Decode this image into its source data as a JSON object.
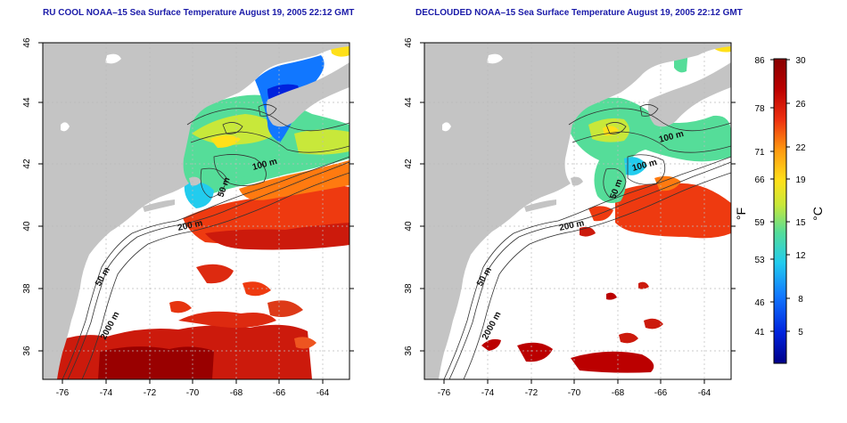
{
  "left_panel": {
    "title": "RU COOL NOAA–15 Sea Surface Temperature August 19, 2005 22:12 GMT",
    "x_ticks": [
      "-76",
      "-74",
      "-72",
      "-70",
      "-68",
      "-66",
      "-64"
    ],
    "y_ticks": [
      "36",
      "38",
      "40",
      "42",
      "44",
      "46"
    ],
    "contour_labels": [
      "100 m",
      "50 m",
      "200 m",
      "50 m",
      "2000 m"
    ]
  },
  "right_panel": {
    "title": "DECLOUDED NOAA–15 Sea Surface Temperature August 19, 2005 22:12 GMT",
    "x_ticks": [
      "-76",
      "-74",
      "-72",
      "-70",
      "-68",
      "-66",
      "-64"
    ],
    "y_ticks": [
      "36",
      "38",
      "40",
      "42",
      "44",
      "46"
    ],
    "contour_labels": [
      "100 m",
      "100 m",
      "50 m",
      "200 m",
      "50 m",
      "2000 m"
    ]
  },
  "colorbar": {
    "fahrenheit_label": "°F",
    "celsius_label": "°C",
    "fahrenheit_ticks": [
      "86",
      "78",
      "71",
      "66",
      "59",
      "53",
      "46",
      "41"
    ],
    "celsius_ticks": [
      "30",
      "26",
      "22",
      "19",
      "15",
      "12",
      "8",
      "5"
    ],
    "celsius_range": [
      2,
      30
    ],
    "colors": [
      "#000088",
      "#0022dd",
      "#1177ff",
      "#22ccee",
      "#55dd99",
      "#c8e83a",
      "#ffe01a",
      "#ff9a10",
      "#ee3010",
      "#bb0000",
      "#880000"
    ]
  },
  "colors": {
    "land": "#c4c4c4",
    "ocean_no_data": "#ffffff",
    "contour": "#333333",
    "grid": "#bbbbbb",
    "title": "#1a1aa8"
  }
}
